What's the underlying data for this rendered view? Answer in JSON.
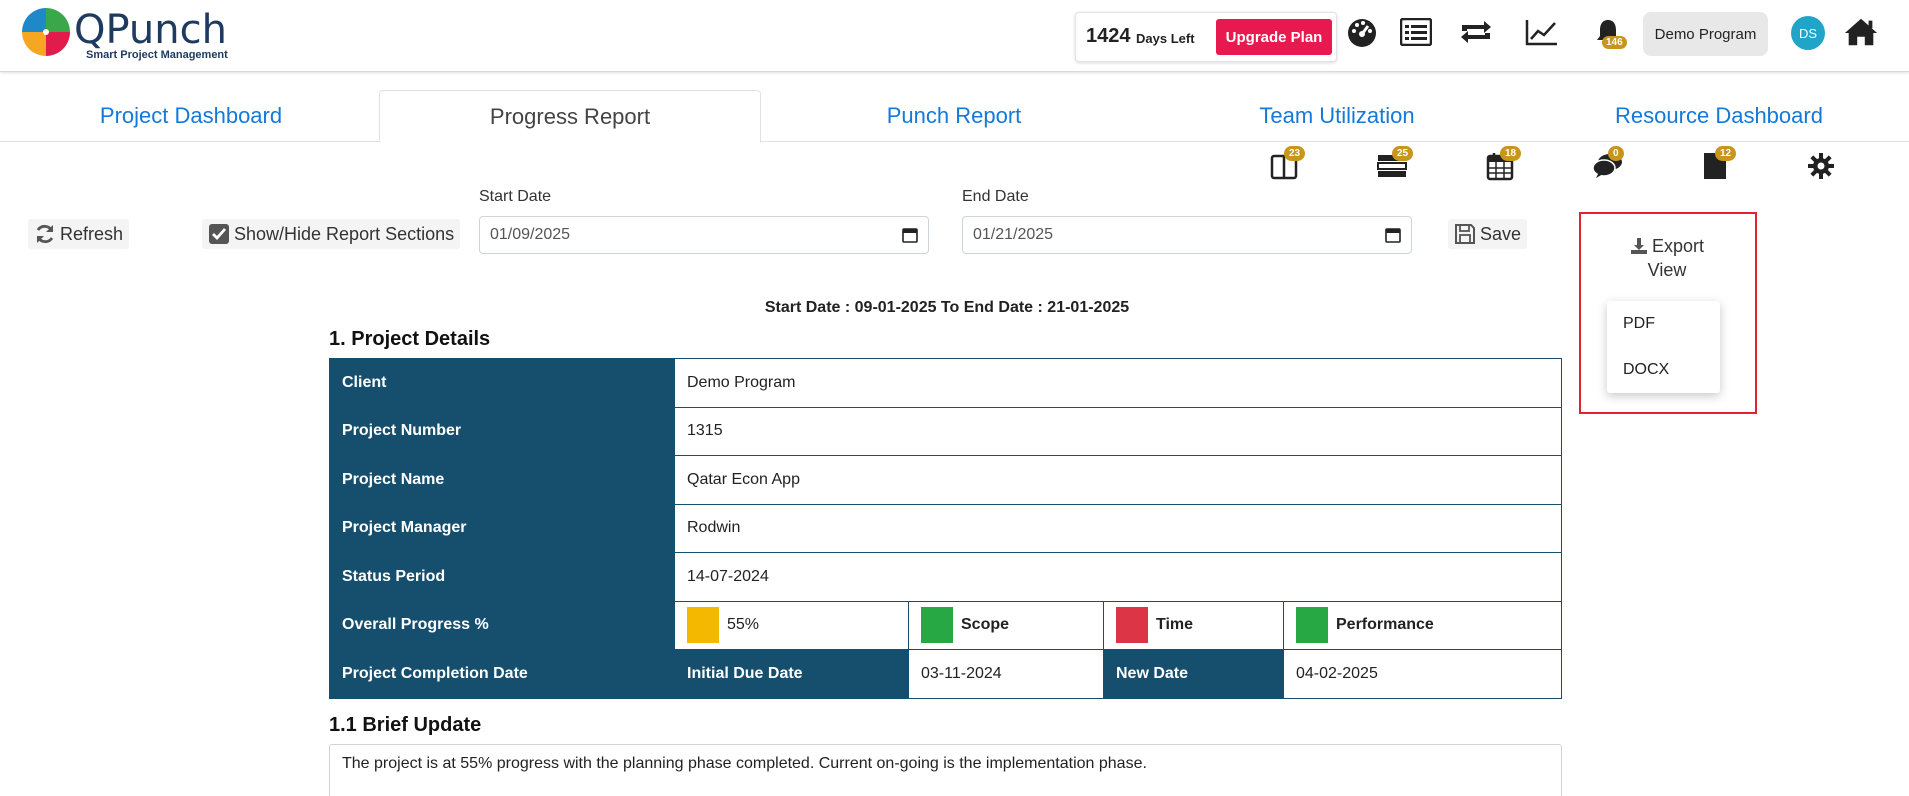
{
  "header": {
    "brand": {
      "name": "QPunch",
      "tagline": "Smart Project Management"
    },
    "days_left": {
      "number": "1424",
      "label": "Days Left"
    },
    "upgrade_label": "Upgrade Plan",
    "icons": [
      "dashboard-gauge-icon",
      "list-icon",
      "sync-icon",
      "chart-line-icon",
      "bell-icon",
      "home-icon"
    ],
    "bell_badge": "146",
    "program_label": "Demo Program",
    "avatar_initials": "DS"
  },
  "tabs": [
    {
      "label": "Project Dashboard",
      "active": false
    },
    {
      "label": "Progress Report",
      "active": true
    },
    {
      "label": "Punch Report",
      "active": false
    },
    {
      "label": "Team Utilization",
      "active": false
    },
    {
      "label": "Resource Dashboard",
      "active": false
    }
  ],
  "secondary_icons": [
    {
      "icon": "columns-icon",
      "badge": "23"
    },
    {
      "icon": "tasks-icon",
      "badge": "25"
    },
    {
      "icon": "calendar-icon",
      "badge": "18"
    },
    {
      "icon": "comments-icon",
      "badge": "0"
    },
    {
      "icon": "file-icon",
      "badge": "12"
    },
    {
      "icon": "gear-icon",
      "badge": ""
    }
  ],
  "toolbar": {
    "refresh_label": "Refresh",
    "show_hide_label": "Show/Hide Report Sections",
    "start_date_label": "Start Date",
    "start_date_value": "01/09/2025",
    "end_date_label": "End Date",
    "end_date_value": "01/21/2025",
    "save_label": "Save"
  },
  "export": {
    "button_line1": "Export",
    "button_line2": "View",
    "options": [
      "PDF",
      "DOCX"
    ]
  },
  "report": {
    "range_text": "Start Date : 09-01-2025 To End Date : 21-01-2025",
    "section1_title": "1. Project Details",
    "rows": [
      {
        "key": "Client",
        "value": "Demo Program"
      },
      {
        "key": "Project Number",
        "value": "1315"
      },
      {
        "key": "Project Name",
        "value": "Qatar Econ App"
      },
      {
        "key": "Project Manager",
        "value": "Rodwin"
      },
      {
        "key": "Status Period",
        "value": "14-07-2024"
      }
    ],
    "overall": {
      "key": "Overall Progress %",
      "progress": "55%",
      "progress_color": "#f5b800",
      "scope_label": "Scope",
      "scope_color": "#28a745",
      "time_label": "Time",
      "time_color": "#dc3545",
      "performance_label": "Performance",
      "performance_color": "#28a745"
    },
    "completion": {
      "key": "Project Completion Date",
      "initial_label": "Initial Due Date",
      "initial_value": "03-11-2024",
      "new_label": "New Date",
      "new_value": "04-02-2025"
    },
    "section11_title": "1.1 Brief Update",
    "brief_text": "The project is at 55% progress with the planning phase completed. Current on-going is the implementation phase."
  }
}
